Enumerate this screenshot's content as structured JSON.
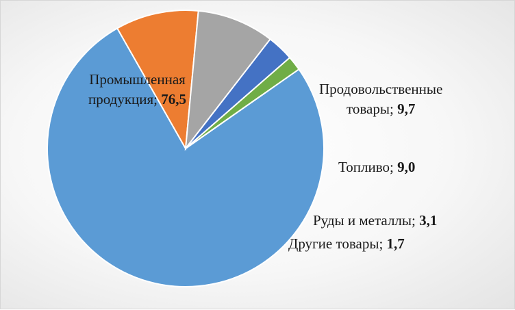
{
  "chart_data": {
    "type": "pie",
    "slices": [
      {
        "name_line1": "Промышленная",
        "name_line2": "продукция;",
        "value": 76.5,
        "value_label": "76,5",
        "color": "#5b9bd5"
      },
      {
        "name_line1": "Продовольственные",
        "name_line2": "товары;",
        "value": 9.7,
        "value_label": "9,7",
        "color": "#ed7d31"
      },
      {
        "name_line1": "Топливо;",
        "name_line2": "",
        "value": 9.0,
        "value_label": "9,0",
        "color": "#a5a5a5"
      },
      {
        "name_line1": "Руды и металлы;",
        "name_line2": "",
        "value": 3.1,
        "value_label": "3,1",
        "color": "#4472c4"
      },
      {
        "name_line1": "Другие товары;",
        "name_line2": "",
        "value": 1.7,
        "value_label": "1,7",
        "color": "#70ad47"
      }
    ],
    "legend": "none",
    "data_labels": "name-and-value"
  }
}
